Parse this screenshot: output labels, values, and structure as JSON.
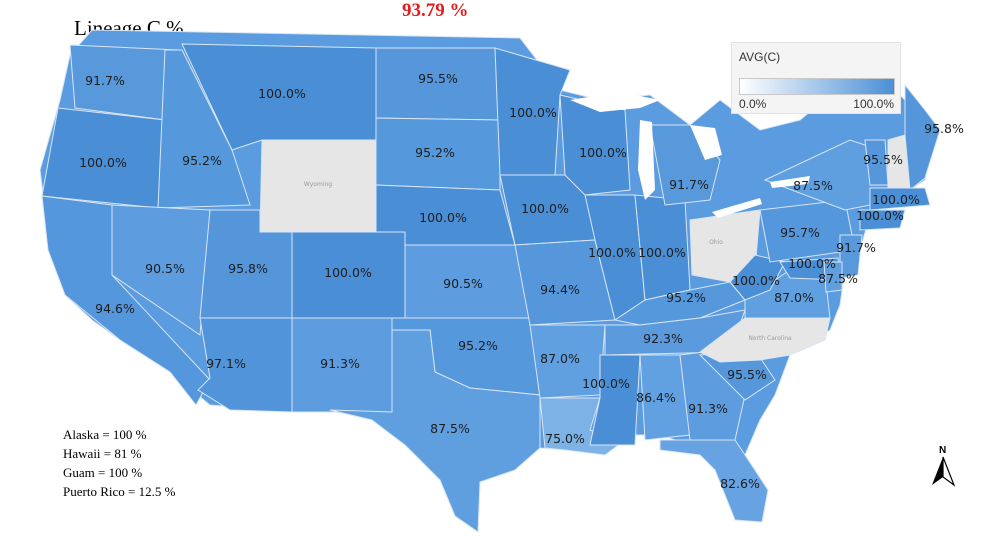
{
  "title": "Lineage C %",
  "overall": "93.79 %",
  "legend": {
    "title": "AVG(C)",
    "min_label": "0.0%",
    "max_label": "100.0%",
    "color_low": "#ffffff",
    "color_high": "#4a8fd6"
  },
  "no_data_color": "#e6e6e6",
  "no_data_states": [
    {
      "name": "Wyoming",
      "label": "Wyoming"
    },
    {
      "name": "Ohio",
      "label": "Ohio"
    },
    {
      "name": "North Carolina",
      "label": "North Carolina"
    },
    {
      "name": "New Hampshire",
      "label": ""
    }
  ],
  "state_values": [
    {
      "state": "Washington",
      "label": "91.7%"
    },
    {
      "state": "Oregon",
      "label": "100.0%"
    },
    {
      "state": "California",
      "label": "94.6%"
    },
    {
      "state": "Idaho",
      "label": "95.2%"
    },
    {
      "state": "Nevada",
      "label": "90.5%"
    },
    {
      "state": "Utah",
      "label": "95.8%"
    },
    {
      "state": "Arizona",
      "label": "97.1%"
    },
    {
      "state": "Montana",
      "label": "100.0%"
    },
    {
      "state": "Colorado",
      "label": "100.0%"
    },
    {
      "state": "New Mexico",
      "label": "91.3%"
    },
    {
      "state": "North Dakota",
      "label": "95.5%"
    },
    {
      "state": "South Dakota",
      "label": "95.2%"
    },
    {
      "state": "Nebraska",
      "label": "100.0%"
    },
    {
      "state": "Kansas",
      "label": "90.5%"
    },
    {
      "state": "Oklahoma",
      "label": "95.2%"
    },
    {
      "state": "Texas",
      "label": "87.5%"
    },
    {
      "state": "Minnesota",
      "label": "100.0%"
    },
    {
      "state": "Iowa",
      "label": "100.0%"
    },
    {
      "state": "Missouri",
      "label": "94.4%"
    },
    {
      "state": "Arkansas",
      "label": "87.0%"
    },
    {
      "state": "Louisiana",
      "label": "75.0%"
    },
    {
      "state": "Wisconsin",
      "label": "100.0%"
    },
    {
      "state": "Illinois",
      "label": "100.0%"
    },
    {
      "state": "Indiana",
      "label": "100.0%"
    },
    {
      "state": "Michigan",
      "label": "91.7%"
    },
    {
      "state": "Kentucky",
      "label": "95.2%"
    },
    {
      "state": "Tennessee",
      "label": "92.3%"
    },
    {
      "state": "Mississippi",
      "label": "100.0%"
    },
    {
      "state": "Alabama",
      "label": "86.4%"
    },
    {
      "state": "Georgia",
      "label": "91.3%"
    },
    {
      "state": "Florida",
      "label": "82.6%"
    },
    {
      "state": "South Carolina",
      "label": "95.5%"
    },
    {
      "state": "Virginia",
      "label": "87.0%"
    },
    {
      "state": "West Virginia",
      "label": "100.0%"
    },
    {
      "state": "Pennsylvania",
      "label": "95.7%"
    },
    {
      "state": "New York",
      "label": "87.5%"
    },
    {
      "state": "Vermont",
      "label": "95.5%"
    },
    {
      "state": "Maine",
      "label": "95.8%"
    },
    {
      "state": "Massachusetts",
      "label": "100.0%"
    },
    {
      "state": "Connecticut",
      "label": "100.0%"
    },
    {
      "state": "New Jersey",
      "label": "91.7%"
    },
    {
      "state": "Maryland",
      "label": "100.0%"
    },
    {
      "state": "Delaware",
      "label": "87.5%"
    }
  ],
  "notes": [
    "Alaska = 100 %",
    "Hawaii = 81 %",
    "Guam = 100 %",
    "Puerto Rico = 12.5 %"
  ],
  "north_arrow": {
    "letter": "N",
    "icon": "north-arrow-icon"
  }
}
